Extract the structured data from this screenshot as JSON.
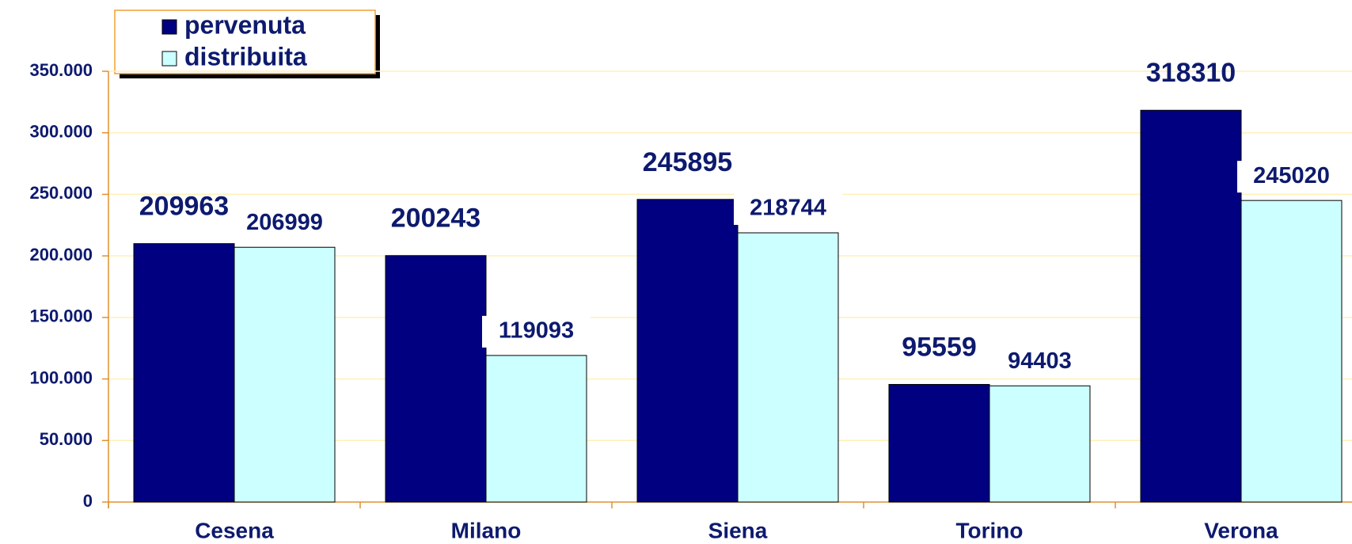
{
  "chart_data": {
    "type": "bar",
    "categories": [
      "Cesena",
      "Milano",
      "Siena",
      "Torino",
      "Verona"
    ],
    "series": [
      {
        "name": "pervenuta",
        "color": "#000080",
        "values": [
          209963,
          200243,
          245895,
          95559,
          318310
        ]
      },
      {
        "name": "distribuita",
        "color": "#ccffff",
        "values": [
          206999,
          119093,
          218744,
          94403,
          245020
        ]
      }
    ],
    "ylim": [
      0,
      350000
    ],
    "yticks": [
      0,
      {
        "value": 50000,
        "label": "50.000"
      },
      {
        "value": 100000,
        "label": "100.000"
      },
      {
        "value": 150000,
        "label": "150.000"
      },
      {
        "value": 200000,
        "label": "200.000"
      },
      {
        "value": 250000,
        "label": "250.000"
      },
      {
        "value": 300000,
        "label": "300.000"
      },
      {
        "value": 350000,
        "label": "350.000"
      }
    ],
    "grid": true,
    "legend": "top-left"
  }
}
